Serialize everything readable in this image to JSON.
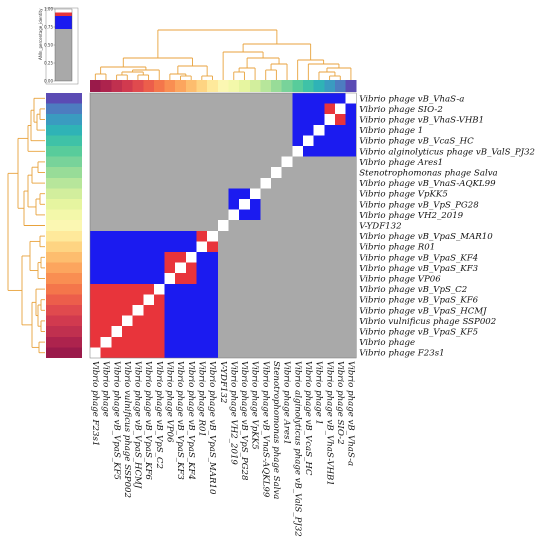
{
  "chart_data": {
    "type": "heatmap",
    "legend": {
      "title": "ANIn_percentage_identity",
      "ticks": [
        "1.00",
        "0.75",
        "0.50",
        "0.25",
        "0.00"
      ],
      "ranges": [
        {
          "from": 1.0,
          "to": 0.95,
          "color": "#ffffff"
        },
        {
          "from": 0.95,
          "to": 0.9,
          "color": "#e8343b"
        },
        {
          "from": 0.9,
          "to": 0.72,
          "color": "#1b1bf0"
        },
        {
          "from": 0.72,
          "to": 0.0,
          "color": "#a9a9a9"
        }
      ]
    },
    "labels": [
      "Vibrio phage vB_VhaS-a",
      "Vibrio phage SIO-2",
      "Vibrio phage vB_VhaS-VHB1",
      "Vibrio phage 1",
      "Vibrio phage vB_VcaS_HC",
      "Vibrio alginolyticus phage vB_ValS_PJ32",
      "Vibrio phage Ares1",
      "Stenotrophomonas phage Salva",
      "Vibrio phage vB_VnaS-AQKL99",
      "Vibrio phage VpKK5",
      "Vibrio phage vB_VpS_PG28",
      "Vibrio phage VH2_2019",
      "V-YDF132",
      "Vibrio phage vB_VpaS_MAR10",
      "Vibrio phage R01",
      "Vibrio phage vB_VpaS_KF4",
      "Vibrio phage vB_VpaS_KF3",
      "Vibrio phage VP06",
      "Vibrio phage vB_VpS_C2",
      "Vibrio phage vB_VpaS_KF6",
      "Vibrio phage vB_VpaS_HCMJ",
      "Vibrio vulnificus phage SSP002",
      "Vibrio phage vB_VpaS_KF5",
      "Vibrio phage",
      "Vibrio phage F23s1"
    ],
    "column_labels": [
      "Vibrio phage F23s1",
      "Vibrio phage",
      "Vibrio phage vB_VpaS_KF5",
      "Vibrio vulnificus phage SSP002",
      "Vibrio phage vB_VpaS_HCMJ",
      "Vibrio phage vB_VpaS_KF6",
      "Vibrio phage vB_VpS_C2",
      "Vibrio phage VP06",
      "Vibrio phage vB_VpaS_KF3",
      "Vibrio phage vB_VpaS_KF4",
      "Vibrio phage R01",
      "Vibrio phage vB_VpaS_MAR10",
      "V-YDF132",
      "Vibrio phage VH2_2019",
      "Vibrio phage vB_VpS_PG28",
      "Vibrio phage VpKK5",
      "Vibrio phage vB_VnaS-AQKL99",
      "Stenotrophomonas phage Salva",
      "Vibrio phage Ares1",
      "Vibrio alginolyticus phage vB_ValS_PJ32",
      "Vibrio phage vB_VcaS_HC",
      "Vibrio phage 1",
      "Vibrio phage vB_VhaS-VHB1",
      "Vibrio phage SIO-2",
      "Vibrio phage vB_VhaS-a"
    ],
    "values": [
      [
        0.68,
        0.68,
        0.68,
        0.68,
        0.68,
        0.68,
        0.68,
        0.68,
        0.68,
        0.68,
        0.68,
        0.68,
        0.68,
        0.68,
        0.68,
        0.68,
        0.68,
        0.68,
        0.68,
        0.8,
        0.8,
        0.8,
        0.8,
        0.8,
        1.0
      ],
      [
        0.68,
        0.68,
        0.68,
        0.68,
        0.68,
        0.68,
        0.68,
        0.68,
        0.68,
        0.68,
        0.68,
        0.68,
        0.68,
        0.68,
        0.68,
        0.68,
        0.68,
        0.68,
        0.68,
        0.8,
        0.8,
        0.8,
        0.92,
        1.0,
        0.8
      ],
      [
        0.68,
        0.68,
        0.68,
        0.68,
        0.68,
        0.68,
        0.68,
        0.68,
        0.68,
        0.68,
        0.68,
        0.68,
        0.68,
        0.68,
        0.68,
        0.68,
        0.68,
        0.68,
        0.68,
        0.8,
        0.8,
        0.8,
        1.0,
        0.92,
        0.8
      ],
      [
        0.68,
        0.68,
        0.68,
        0.68,
        0.68,
        0.68,
        0.68,
        0.68,
        0.68,
        0.68,
        0.68,
        0.68,
        0.68,
        0.68,
        0.68,
        0.68,
        0.68,
        0.68,
        0.68,
        0.8,
        0.8,
        1.0,
        0.8,
        0.8,
        0.8
      ],
      [
        0.68,
        0.68,
        0.68,
        0.68,
        0.68,
        0.68,
        0.68,
        0.68,
        0.68,
        0.68,
        0.68,
        0.68,
        0.68,
        0.68,
        0.68,
        0.68,
        0.68,
        0.68,
        0.68,
        0.8,
        1.0,
        0.8,
        0.8,
        0.8,
        0.8
      ],
      [
        0.68,
        0.68,
        0.68,
        0.68,
        0.68,
        0.68,
        0.68,
        0.68,
        0.68,
        0.68,
        0.68,
        0.68,
        0.68,
        0.68,
        0.68,
        0.68,
        0.68,
        0.68,
        0.68,
        1.0,
        0.8,
        0.8,
        0.8,
        0.8,
        0.8
      ],
      [
        0.68,
        0.68,
        0.68,
        0.68,
        0.68,
        0.68,
        0.68,
        0.68,
        0.68,
        0.68,
        0.68,
        0.68,
        0.68,
        0.68,
        0.68,
        0.68,
        0.68,
        0.68,
        1.0,
        0.68,
        0.68,
        0.68,
        0.68,
        0.68,
        0.68
      ],
      [
        0.68,
        0.68,
        0.68,
        0.68,
        0.68,
        0.68,
        0.68,
        0.68,
        0.68,
        0.68,
        0.68,
        0.68,
        0.68,
        0.68,
        0.68,
        0.68,
        0.68,
        1.0,
        0.68,
        0.68,
        0.68,
        0.68,
        0.68,
        0.68,
        0.68
      ],
      [
        0.68,
        0.68,
        0.68,
        0.68,
        0.68,
        0.68,
        0.68,
        0.68,
        0.68,
        0.68,
        0.68,
        0.68,
        0.68,
        0.68,
        0.68,
        0.68,
        1.0,
        0.68,
        0.68,
        0.68,
        0.68,
        0.68,
        0.68,
        0.68,
        0.68
      ],
      [
        0.68,
        0.68,
        0.68,
        0.68,
        0.68,
        0.68,
        0.68,
        0.68,
        0.68,
        0.68,
        0.68,
        0.68,
        0.68,
        0.8,
        0.8,
        1.0,
        0.68,
        0.68,
        0.68,
        0.68,
        0.68,
        0.68,
        0.68,
        0.68,
        0.68
      ],
      [
        0.68,
        0.68,
        0.68,
        0.68,
        0.68,
        0.68,
        0.68,
        0.68,
        0.68,
        0.68,
        0.68,
        0.68,
        0.68,
        0.8,
        1.0,
        0.8,
        0.68,
        0.68,
        0.68,
        0.68,
        0.68,
        0.68,
        0.68,
        0.68,
        0.68
      ],
      [
        0.68,
        0.68,
        0.68,
        0.68,
        0.68,
        0.68,
        0.68,
        0.68,
        0.68,
        0.68,
        0.68,
        0.68,
        0.68,
        1.0,
        0.8,
        0.8,
        0.68,
        0.68,
        0.68,
        0.68,
        0.68,
        0.68,
        0.68,
        0.68,
        0.68
      ],
      [
        0.68,
        0.68,
        0.68,
        0.68,
        0.68,
        0.68,
        0.68,
        0.68,
        0.68,
        0.68,
        0.68,
        0.68,
        1.0,
        0.68,
        0.68,
        0.68,
        0.68,
        0.68,
        0.68,
        0.68,
        0.68,
        0.68,
        0.68,
        0.68,
        0.68
      ],
      [
        0.8,
        0.8,
        0.8,
        0.8,
        0.8,
        0.8,
        0.8,
        0.8,
        0.8,
        0.8,
        0.92,
        0.97,
        0.68,
        0.68,
        0.68,
        0.68,
        0.68,
        0.68,
        0.68,
        0.68,
        0.68,
        0.68,
        0.68,
        0.68,
        0.68
      ],
      [
        0.8,
        0.8,
        0.8,
        0.8,
        0.8,
        0.8,
        0.8,
        0.8,
        0.8,
        0.8,
        1.0,
        0.92,
        0.68,
        0.68,
        0.68,
        0.68,
        0.68,
        0.68,
        0.68,
        0.68,
        0.68,
        0.68,
        0.68,
        0.68,
        0.68
      ],
      [
        0.8,
        0.8,
        0.8,
        0.8,
        0.8,
        0.8,
        0.8,
        0.91,
        0.93,
        1.0,
        0.8,
        0.8,
        0.68,
        0.68,
        0.68,
        0.68,
        0.68,
        0.68,
        0.68,
        0.68,
        0.68,
        0.68,
        0.68,
        0.68,
        0.68
      ],
      [
        0.8,
        0.8,
        0.8,
        0.8,
        0.8,
        0.8,
        0.8,
        0.91,
        1.0,
        0.93,
        0.8,
        0.8,
        0.68,
        0.68,
        0.68,
        0.68,
        0.68,
        0.68,
        0.68,
        0.68,
        0.68,
        0.68,
        0.68,
        0.68,
        0.68
      ],
      [
        0.8,
        0.8,
        0.8,
        0.8,
        0.8,
        0.8,
        0.8,
        1.0,
        0.91,
        0.91,
        0.8,
        0.8,
        0.68,
        0.68,
        0.68,
        0.68,
        0.68,
        0.68,
        0.68,
        0.68,
        0.68,
        0.68,
        0.68,
        0.68,
        0.68
      ],
      [
        0.91,
        0.91,
        0.92,
        0.91,
        0.92,
        0.91,
        1.0,
        0.8,
        0.8,
        0.8,
        0.8,
        0.8,
        0.68,
        0.68,
        0.68,
        0.68,
        0.68,
        0.68,
        0.68,
        0.68,
        0.68,
        0.68,
        0.68,
        0.68,
        0.68
      ],
      [
        0.91,
        0.91,
        0.91,
        0.92,
        0.91,
        1.0,
        0.91,
        0.8,
        0.8,
        0.8,
        0.8,
        0.8,
        0.68,
        0.68,
        0.68,
        0.68,
        0.68,
        0.68,
        0.68,
        0.68,
        0.68,
        0.68,
        0.68,
        0.68,
        0.68
      ],
      [
        0.91,
        0.91,
        0.92,
        0.91,
        1.0,
        0.91,
        0.92,
        0.8,
        0.8,
        0.8,
        0.8,
        0.8,
        0.68,
        0.68,
        0.68,
        0.68,
        0.68,
        0.68,
        0.68,
        0.68,
        0.68,
        0.68,
        0.68,
        0.68,
        0.68
      ],
      [
        0.91,
        0.91,
        0.91,
        1.0,
        0.91,
        0.92,
        0.91,
        0.8,
        0.8,
        0.8,
        0.8,
        0.8,
        0.68,
        0.68,
        0.68,
        0.68,
        0.68,
        0.68,
        0.68,
        0.68,
        0.68,
        0.68,
        0.68,
        0.68,
        0.68
      ],
      [
        0.91,
        0.92,
        1.0,
        0.91,
        0.92,
        0.91,
        0.92,
        0.8,
        0.8,
        0.8,
        0.8,
        0.8,
        0.68,
        0.68,
        0.68,
        0.68,
        0.68,
        0.68,
        0.68,
        0.68,
        0.68,
        0.68,
        0.68,
        0.68,
        0.68
      ],
      [
        0.92,
        1.0,
        0.92,
        0.91,
        0.91,
        0.91,
        0.91,
        0.8,
        0.8,
        0.8,
        0.8,
        0.8,
        0.68,
        0.68,
        0.68,
        0.68,
        0.68,
        0.68,
        0.68,
        0.68,
        0.68,
        0.68,
        0.68,
        0.68,
        0.68
      ],
      [
        1.0,
        0.92,
        0.91,
        0.91,
        0.91,
        0.91,
        0.91,
        0.8,
        0.8,
        0.8,
        0.8,
        0.8,
        0.68,
        0.68,
        0.68,
        0.68,
        0.68,
        0.68,
        0.68,
        0.68,
        0.68,
        0.68,
        0.68,
        0.68,
        0.68
      ]
    ],
    "class_colors": {
      "row_side": [
        "#5b4bb4",
        "#4d7cc0",
        "#3a9bc0",
        "#2fb3b6",
        "#3fc2a7",
        "#58cc9b",
        "#78d39a",
        "#98dc98",
        "#b7e69b",
        "#d2ee9d",
        "#e6f5a0",
        "#f3f8aa",
        "#fbf7b2",
        "#fee99b",
        "#fed482",
        "#fdbd6e",
        "#fca55e",
        "#f98e52",
        "#f4764b",
        "#ec5e4b",
        "#e04a4e",
        "#d13a4f",
        "#c0304f",
        "#ad234d",
        "#9a1a4a"
      ],
      "col_side": [
        "#9a1a4a",
        "#ad234d",
        "#c0304f",
        "#d13a4f",
        "#e04a4e",
        "#ec5e4b",
        "#f4764b",
        "#f98e52",
        "#fca55e",
        "#fdbd6e",
        "#fed482",
        "#fee99b",
        "#fbf7b2",
        "#f3f8aa",
        "#e6f5a0",
        "#d2ee9d",
        "#b7e69b",
        "#98dc98",
        "#78d39a",
        "#58cc9b",
        "#3fc2a7",
        "#2fb3b6",
        "#3a9bc0",
        "#4d7cc0",
        "#5b4bb4"
      ]
    },
    "dendrogram_color": "#e8a23c"
  }
}
